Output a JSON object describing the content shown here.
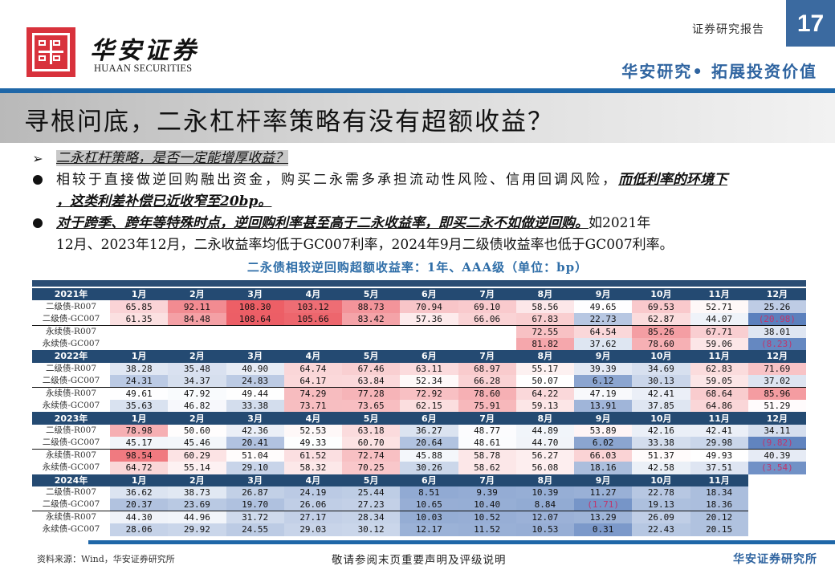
{
  "header": {
    "logo_cn": "华安证券",
    "logo_en": "HUAAN SECURITIES",
    "report_type": "证券研究报告",
    "page_number": "17",
    "slogan": "华安研究• 拓展投资价值",
    "colors": {
      "brand_red": "#d8323c",
      "brand_blue": "#1f67a8",
      "page_box": "#3b6aa0"
    }
  },
  "title": "寻根问底，二永杠杆率策略有没有超额收益？",
  "bullets": {
    "heading": "二永杠杆策略，是否一定能增厚收益？",
    "b1_normal": "相较于直接做逆回购融出资金，购买二永需多承担流动性风险、信用回调风险，",
    "b1_emph_a": "而低利率的环境下",
    "b1_emph_b": "，这类利差补偿已近收窄至20bp。",
    "b2_emph": "对于跨季、跨年等特殊时点，逆回购利率甚至高于二永收益率，即买二永不如做逆回购。",
    "b2_normal_a": "如2021年",
    "b2_normal_b": "12月、2023年12月，二永收益率均低于GC007利率，2024年9月二级债收益率也低于GC007利率。"
  },
  "table_title": "二永债相较逆回购超额收益率：1年、AAA级（单位：bp）",
  "chart_data": {
    "type": "table",
    "title": "二永债相较逆回购超额收益率：1年、AAA级（单位：bp）",
    "unit": "bp",
    "columns": [
      "1月",
      "2月",
      "3月",
      "4月",
      "5月",
      "6月",
      "7月",
      "8月",
      "9月",
      "10月",
      "11月",
      "12月"
    ],
    "row_labels": [
      "二级债-R007",
      "二级债-GC007",
      "永续债-R007",
      "永续债-GC007"
    ],
    "blocks": [
      {
        "year": "2021年",
        "rows": [
          [
            "65.85",
            "92.11",
            "108.30",
            "103.12",
            "88.73",
            "70.94",
            "69.10",
            "58.56",
            "49.65",
            "69.53",
            "52.71",
            "25.26"
          ],
          [
            "61.35",
            "84.48",
            "108.64",
            "105.66",
            "83.42",
            "57.36",
            "66.06",
            "67.83",
            "22.73",
            "62.87",
            "44.07",
            "(20.98)"
          ],
          [
            "",
            "",
            "",
            "",
            "",
            "",
            "",
            "72.55",
            "64.54",
            "85.26",
            "67.71",
            "38.01"
          ],
          [
            "",
            "",
            "",
            "",
            "",
            "",
            "",
            "81.82",
            "37.62",
            "78.60",
            "59.06",
            "(8.23)"
          ]
        ]
      },
      {
        "year": "2022年",
        "rows": [
          [
            "38.28",
            "35.48",
            "40.90",
            "64.74",
            "67.46",
            "63.11",
            "68.97",
            "55.17",
            "39.39",
            "34.69",
            "62.83",
            "71.69"
          ],
          [
            "24.31",
            "34.37",
            "24.83",
            "64.17",
            "63.84",
            "52.34",
            "66.28",
            "50.07",
            "6.12",
            "30.13",
            "59.05",
            "37.02"
          ],
          [
            "49.61",
            "47.92",
            "49.44",
            "74.29",
            "77.28",
            "72.92",
            "78.60",
            "64.22",
            "47.19",
            "42.41",
            "68.64",
            "85.96"
          ],
          [
            "35.63",
            "46.82",
            "33.38",
            "73.71",
            "73.65",
            "62.15",
            "75.91",
            "59.13",
            "13.91",
            "37.85",
            "64.86",
            "51.29"
          ]
        ]
      },
      {
        "year": "2023年",
        "rows": [
          [
            "78.98",
            "50.60",
            "42.36",
            "52.53",
            "63.18",
            "36.27",
            "48.77",
            "44.89",
            "53.89",
            "42.16",
            "42.41",
            "34.11"
          ],
          [
            "45.17",
            "45.46",
            "20.41",
            "49.33",
            "60.70",
            "20.64",
            "48.61",
            "44.70",
            "6.02",
            "33.38",
            "29.98",
            "(9.82)"
          ],
          [
            "98.54",
            "60.29",
            "51.04",
            "61.52",
            "72.74",
            "45.88",
            "58.78",
            "56.27",
            "66.03",
            "51.37",
            "49.93",
            "40.39"
          ],
          [
            "64.72",
            "55.14",
            "29.10",
            "58.32",
            "70.25",
            "30.26",
            "58.62",
            "56.08",
            "18.16",
            "42.58",
            "37.51",
            "(3.54)"
          ]
        ]
      },
      {
        "year": "2024年",
        "rows": [
          [
            "36.62",
            "38.73",
            "26.87",
            "24.19",
            "25.44",
            "8.51",
            "9.39",
            "10.39",
            "11.27",
            "22.78",
            "18.34"
          ],
          [
            "20.37",
            "23.69",
            "19.70",
            "26.06",
            "27.23",
            "10.65",
            "10.40",
            "8.84",
            "(1.71)",
            "19.13",
            "18.36"
          ],
          [
            "44.30",
            "44.96",
            "31.72",
            "27.17",
            "28.34",
            "10.03",
            "10.52",
            "12.07",
            "13.29",
            "26.09",
            "20.12"
          ],
          [
            "28.06",
            "29.92",
            "24.55",
            "29.03",
            "30.12",
            "12.17",
            "11.52",
            "10.53",
            "0.31",
            "22.43",
            "20.15"
          ]
        ]
      }
    ],
    "color_scale": {
      "low": "#5b80bd",
      "mid": "#ffffff",
      "high": "#ec5a62"
    }
  },
  "footer": {
    "source": "资料来源：Wind，华安证券研究所",
    "disclaimer": "敬请参阅末页重要声明及评级说明",
    "brand": "华安证券研究所"
  }
}
